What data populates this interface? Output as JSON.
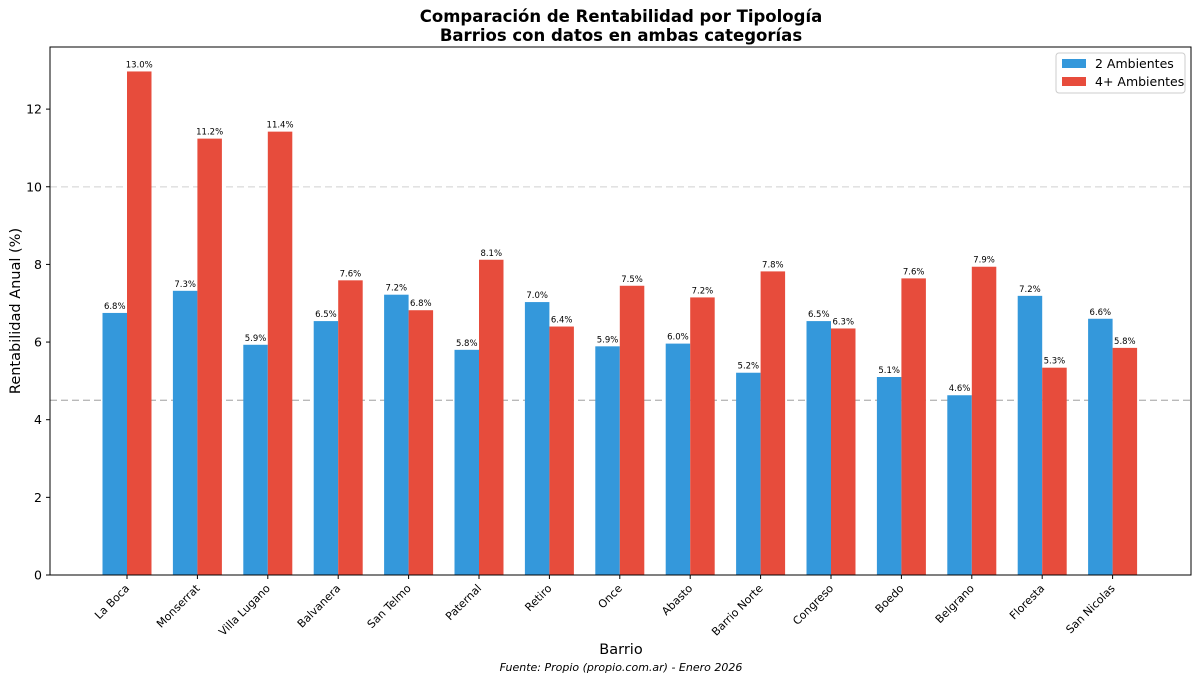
{
  "chart_data": {
    "type": "bar",
    "title_line1": "Comparación de Rentabilidad por Tipología",
    "title_line2": "Barrios con datos en ambas categorías",
    "xlabel": "Barrio",
    "ylabel": "Rentabilidad Anual (%)",
    "source": "Fuente: Propio (propio.com.ar) - Enero 2026",
    "ylim": [
      0,
      13.6
    ],
    "yticks": [
      0,
      2,
      4,
      6,
      8,
      10,
      12
    ],
    "reference_lines": [
      10,
      4.5
    ],
    "legend_position": "top-right",
    "categories": [
      "La Boca",
      "Monserrat",
      "Villa Lugano",
      "Balvanera",
      "San Telmo",
      "Paternal",
      "Retiro",
      "Once",
      "Abasto",
      "Barrio Norte",
      "Congreso",
      "Boedo",
      "Belgrano",
      "Floresta",
      "San Nicolas"
    ],
    "series": [
      {
        "name": "2 Ambientes",
        "color": "#3498db",
        "values": [
          6.75,
          7.32,
          5.93,
          6.54,
          7.22,
          5.8,
          7.03,
          5.89,
          5.96,
          5.21,
          6.54,
          5.1,
          4.63,
          7.19,
          6.6
        ],
        "labels": [
          "6.8%",
          "7.3%",
          "5.9%",
          "6.5%",
          "7.2%",
          "5.8%",
          "7.0%",
          "5.9%",
          "6.0%",
          "5.2%",
          "6.5%",
          "5.1%",
          "4.6%",
          "7.2%",
          "6.6%"
        ]
      },
      {
        "name": "4+ Ambientes",
        "color": "#e74c3c",
        "values": [
          12.97,
          11.24,
          11.42,
          7.59,
          6.82,
          8.12,
          6.4,
          7.45,
          7.15,
          7.82,
          6.35,
          7.64,
          7.94,
          5.34,
          5.85
        ],
        "labels": [
          "13.0%",
          "11.2%",
          "11.4%",
          "7.6%",
          "6.8%",
          "8.1%",
          "6.4%",
          "7.5%",
          "7.2%",
          "7.8%",
          "6.3%",
          "7.6%",
          "7.9%",
          "5.3%",
          "5.8%"
        ]
      }
    ]
  }
}
